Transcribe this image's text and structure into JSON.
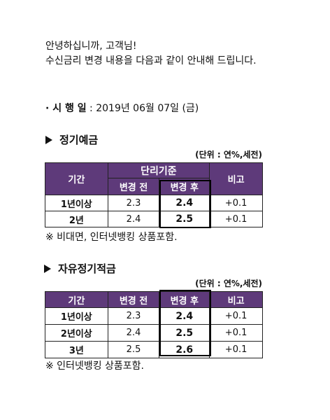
{
  "greeting": {
    "line1": "안녕하십니까, 고객님!",
    "line2": "수신금리 변경 내용을 다음과 같이 안내해 드립니다."
  },
  "effective": {
    "label": "· 시 행 일",
    "separator": " : ",
    "value": "2019년 06월 07일 (금)"
  },
  "section1": {
    "title": "정기예금",
    "unit": "(단위 : 연%,세전)",
    "headers": {
      "period": "기간",
      "group": "단리기준",
      "before": "변경 전",
      "after": "변경 후",
      "note": "비고"
    },
    "rows": [
      {
        "period": "1년이상",
        "before": "2.3",
        "after": "2.4",
        "note": "+0.1"
      },
      {
        "period": "2년",
        "before": "2.4",
        "after": "2.5",
        "note": "+0.1"
      }
    ],
    "footnote": "※ 비대면, 인터넷뱅킹 상품포함."
  },
  "section2": {
    "title": "자유정기적금",
    "unit": "(단위 : 연%,세전)",
    "headers": {
      "period": "기간",
      "before": "변경 전",
      "after": "변경 후",
      "note": "비고"
    },
    "rows": [
      {
        "period": "1년이상",
        "before": "2.3",
        "after": "2.4",
        "note": "+0.1"
      },
      {
        "period": "2년이상",
        "before": "2.4",
        "after": "2.5",
        "note": "+0.1"
      },
      {
        "period": "3년",
        "before": "2.5",
        "after": "2.6",
        "note": "+0.1"
      }
    ],
    "footnote": "※ 인터넷뱅킹 상품포함."
  },
  "colors": {
    "header_bg": "#5e3a7a",
    "header_text": "#ffffff"
  }
}
